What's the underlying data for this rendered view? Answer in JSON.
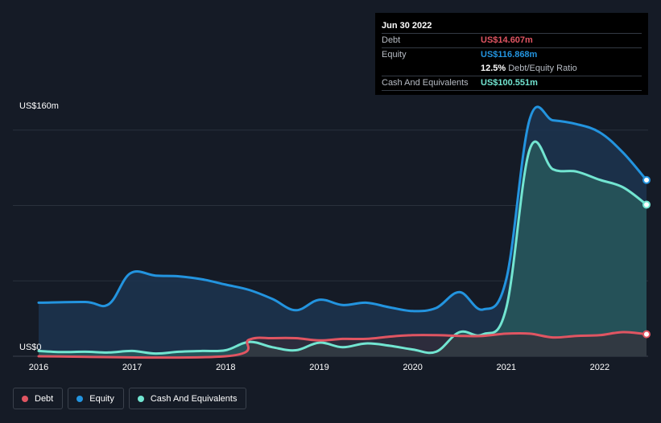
{
  "tooltip": {
    "date": "Jun 30 2022",
    "debt_label": "Debt",
    "debt_value": "US$14.607m",
    "equity_label": "Equity",
    "equity_value": "US$116.868m",
    "ratio_value": "12.5%",
    "ratio_text": "Debt/Equity Ratio",
    "cash_label": "Cash And Equivalents",
    "cash_value": "US$100.551m"
  },
  "legend": {
    "debt": "Debt",
    "equity": "Equity",
    "cash": "Cash And Equivalents"
  },
  "colors": {
    "debt": "#e05562",
    "equity": "#2394df",
    "cash": "#72e5d1",
    "background": "#151b26"
  },
  "chart_data": {
    "type": "area",
    "title": "",
    "xlabel": "",
    "ylabel": "",
    "y_top_label": "US$160m",
    "y_bottom_label": "US$0",
    "ylim": [
      0,
      160
    ],
    "xlim": [
      2016,
      2022.5
    ],
    "x_ticks": [
      "2016",
      "2017",
      "2018",
      "2019",
      "2020",
      "2021",
      "2022"
    ],
    "series": [
      {
        "name": "Equity",
        "key": "equity",
        "points": [
          [
            2016.0,
            35.5
          ],
          [
            2016.5,
            36
          ],
          [
            2016.75,
            34.5
          ],
          [
            2016.98,
            55
          ],
          [
            2017.25,
            53.5
          ],
          [
            2017.5,
            53
          ],
          [
            2017.75,
            51
          ],
          [
            2018.0,
            47.5
          ],
          [
            2018.25,
            44
          ],
          [
            2018.5,
            38
          ],
          [
            2018.75,
            30.5
          ],
          [
            2019.0,
            37.5
          ],
          [
            2019.25,
            34
          ],
          [
            2019.5,
            35.5
          ],
          [
            2019.75,
            32.5
          ],
          [
            2020.0,
            30
          ],
          [
            2020.25,
            32
          ],
          [
            2020.5,
            42.5
          ],
          [
            2020.75,
            31
          ],
          [
            2021.0,
            51
          ],
          [
            2021.25,
            157
          ],
          [
            2021.5,
            156.5
          ],
          [
            2021.75,
            154
          ],
          [
            2022.0,
            148.5
          ],
          [
            2022.25,
            135
          ],
          [
            2022.5,
            116.868
          ]
        ]
      },
      {
        "name": "Cash And Equivalents",
        "key": "cash",
        "points": [
          [
            2016.0,
            3.5
          ],
          [
            2016.25,
            2.8
          ],
          [
            2016.5,
            3
          ],
          [
            2016.75,
            2.5
          ],
          [
            2017.0,
            3.5
          ],
          [
            2017.25,
            1.8
          ],
          [
            2017.5,
            3
          ],
          [
            2017.75,
            3.5
          ],
          [
            2018.0,
            4
          ],
          [
            2018.25,
            9.5
          ],
          [
            2018.5,
            6
          ],
          [
            2018.75,
            4
          ],
          [
            2019.0,
            9
          ],
          [
            2019.25,
            6
          ],
          [
            2019.5,
            8.5
          ],
          [
            2019.75,
            7
          ],
          [
            2020.0,
            4.5
          ],
          [
            2020.25,
            3
          ],
          [
            2020.5,
            16
          ],
          [
            2020.75,
            14.5
          ],
          [
            2021.0,
            32
          ],
          [
            2021.25,
            137
          ],
          [
            2021.5,
            124
          ],
          [
            2021.75,
            122.5
          ],
          [
            2022.0,
            117
          ],
          [
            2022.25,
            112
          ],
          [
            2022.5,
            100.551
          ]
        ]
      },
      {
        "name": "Debt",
        "key": "debt",
        "points": [
          [
            2016.0,
            0
          ],
          [
            2018.0,
            0
          ],
          [
            2018.25,
            11
          ],
          [
            2018.5,
            12
          ],
          [
            2018.75,
            12
          ],
          [
            2019.0,
            10.5
          ],
          [
            2019.25,
            11.5
          ],
          [
            2019.5,
            11.5
          ],
          [
            2019.75,
            13
          ],
          [
            2020.0,
            14
          ],
          [
            2020.25,
            14
          ],
          [
            2020.5,
            13.5
          ],
          [
            2020.75,
            13.5
          ],
          [
            2021.0,
            15
          ],
          [
            2021.25,
            15
          ],
          [
            2021.5,
            12.5
          ],
          [
            2021.75,
            13.5
          ],
          [
            2022.0,
            14
          ],
          [
            2022.25,
            16
          ],
          [
            2022.5,
            14.607
          ]
        ]
      }
    ]
  }
}
